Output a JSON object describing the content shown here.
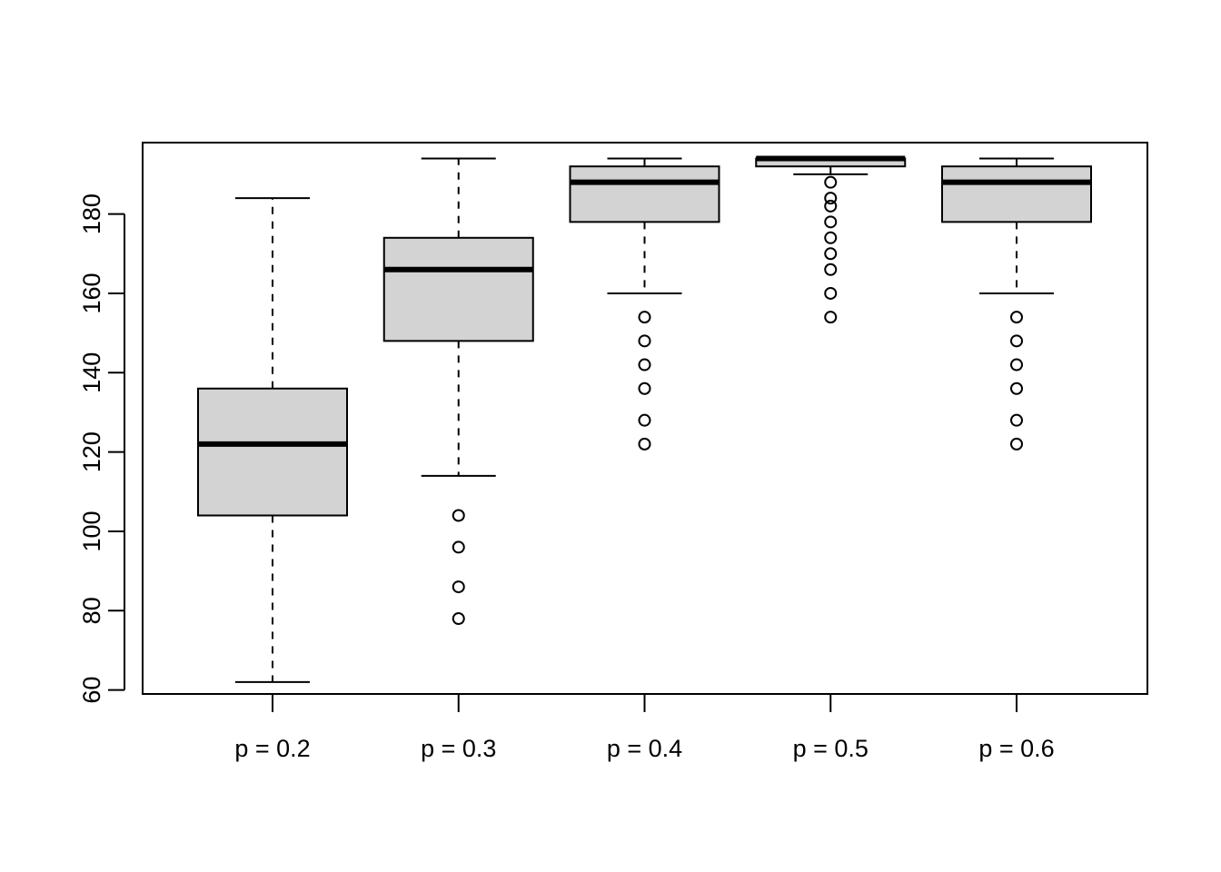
{
  "chart_data": {
    "type": "boxplot",
    "title": "",
    "xlabel": "",
    "ylabel": "",
    "ylim": [
      59,
      198
    ],
    "y_ticks": [
      60,
      80,
      100,
      120,
      140,
      160,
      180
    ],
    "categories": [
      "p = 0.2",
      "p = 0.3",
      "p = 0.4",
      "p = 0.5",
      "p = 0.6"
    ],
    "boxes": [
      {
        "label": "p = 0.2",
        "whisker_low": 62,
        "q1": 104,
        "median": 122,
        "q3": 136,
        "whisker_high": 184,
        "outliers": []
      },
      {
        "label": "p = 0.3",
        "whisker_low": 114,
        "q1": 148,
        "median": 166,
        "q3": 174,
        "whisker_high": 194,
        "outliers": [
          78,
          86,
          96,
          104
        ]
      },
      {
        "label": "p = 0.4",
        "whisker_low": 160,
        "q1": 178,
        "median": 188,
        "q3": 192,
        "whisker_high": 194,
        "outliers": [
          122,
          128,
          136,
          142,
          148,
          154
        ]
      },
      {
        "label": "p = 0.5",
        "whisker_low": 190,
        "q1": 192,
        "median": 194,
        "q3": 194,
        "whisker_high": 194,
        "outliers": [
          154,
          160,
          166,
          170,
          174,
          178,
          182,
          184,
          188
        ]
      },
      {
        "label": "p = 0.6",
        "whisker_low": 160,
        "q1": 178,
        "median": 188,
        "q3": 192,
        "whisker_high": 194,
        "outliers": [
          122,
          128,
          136,
          142,
          148,
          154
        ]
      }
    ],
    "box_fill": "#d3d3d3",
    "grid": false,
    "legend": "none"
  }
}
